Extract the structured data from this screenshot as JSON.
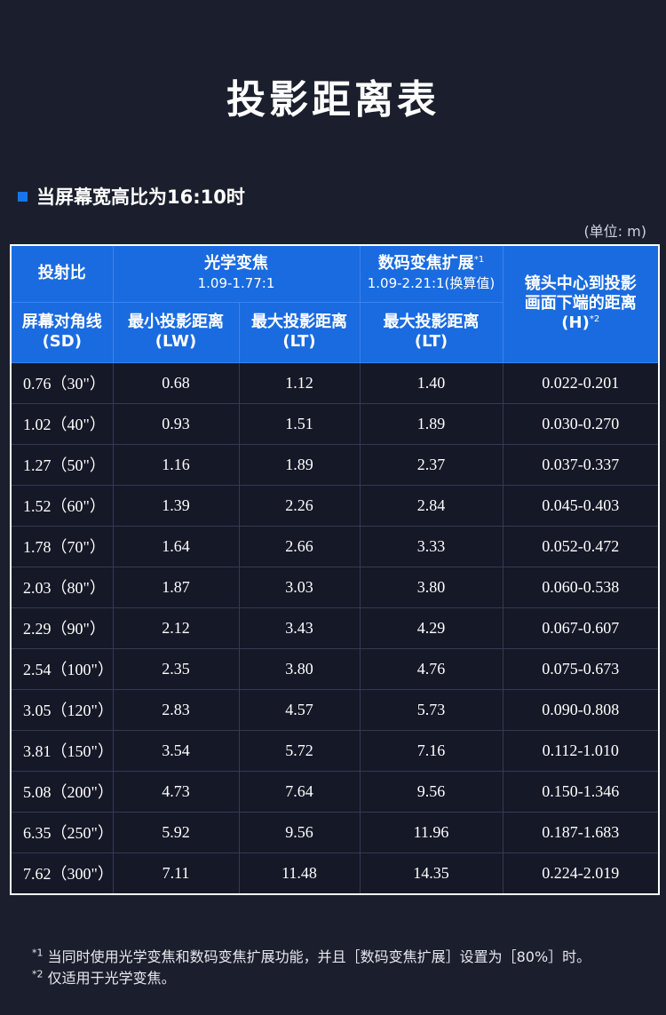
{
  "title": "投影距离表",
  "section": {
    "heading": "当屏幕宽高比为16:10时"
  },
  "unit": "(单位: m)",
  "table": {
    "header": {
      "throw_ratio": "投射比",
      "optical_zoom": "光学变焦",
      "optical_zoom_range": "1.09-1.77:1",
      "digital_zoom": "数码变焦扩展",
      "digital_zoom_sup": "*1",
      "digital_zoom_range": "1.09-2.21:1(换算值)",
      "lens_height_line1": "镜头中心到投影",
      "lens_height_line2": "画面下端的距离",
      "lens_height_line3": "(H)",
      "lens_height_sup": "*2",
      "screen_diag_line1": "屏幕对角线",
      "screen_diag_line2": "(SD)",
      "min_dist_line1": "最小投影距离",
      "min_dist_line2": "(LW)",
      "max_dist_line1": "最大投影距离",
      "max_dist_line2": "(LT)",
      "max_dist_digital_line1": "最大投影距离",
      "max_dist_digital_line2": "(LT)"
    },
    "rows": [
      {
        "sd": "0.76（30\"）",
        "lw": "0.68",
        "lt": "1.12",
        "lt_digital": "1.40",
        "h": "0.022-0.201"
      },
      {
        "sd": "1.02（40\"）",
        "lw": "0.93",
        "lt": "1.51",
        "lt_digital": "1.89",
        "h": "0.030-0.270"
      },
      {
        "sd": "1.27（50\"）",
        "lw": "1.16",
        "lt": "1.89",
        "lt_digital": "2.37",
        "h": "0.037-0.337"
      },
      {
        "sd": "1.52（60\"）",
        "lw": "1.39",
        "lt": "2.26",
        "lt_digital": "2.84",
        "h": "0.045-0.403"
      },
      {
        "sd": "1.78（70\"）",
        "lw": "1.64",
        "lt": "2.66",
        "lt_digital": "3.33",
        "h": "0.052-0.472"
      },
      {
        "sd": "2.03（80\"）",
        "lw": "1.87",
        "lt": "3.03",
        "lt_digital": "3.80",
        "h": "0.060-0.538"
      },
      {
        "sd": "2.29（90\"）",
        "lw": "2.12",
        "lt": "3.43",
        "lt_digital": "4.29",
        "h": "0.067-0.607"
      },
      {
        "sd": "2.54（100\"）",
        "lw": "2.35",
        "lt": "3.80",
        "lt_digital": "4.76",
        "h": "0.075-0.673"
      },
      {
        "sd": "3.05（120\"）",
        "lw": "2.83",
        "lt": "4.57",
        "lt_digital": "5.73",
        "h": "0.090-0.808"
      },
      {
        "sd": "3.81（150\"）",
        "lw": "3.54",
        "lt": "5.72",
        "lt_digital": "7.16",
        "h": "0.112-1.010"
      },
      {
        "sd": "5.08（200\"）",
        "lw": "4.73",
        "lt": "7.64",
        "lt_digital": "9.56",
        "h": "0.150-1.346"
      },
      {
        "sd": "6.35（250\"）",
        "lw": "5.92",
        "lt": "9.56",
        "lt_digital": "11.96",
        "h": "0.187-1.683"
      },
      {
        "sd": "7.62（300\"）",
        "lw": "7.11",
        "lt": "11.48",
        "lt_digital": "14.35",
        "h": "0.224-2.019"
      }
    ]
  },
  "notes": {
    "note1_mark": "*1",
    "note1_text": " 当同时使用光学变焦和数码变焦扩展功能，并且［数码变焦扩展］设置为［80%］时。",
    "note2_mark": "*2",
    "note2_text": " 仅适用于光学变焦。"
  },
  "colors": {
    "background": "#1b1f2d",
    "header": "#1a6bdf",
    "bullet": "#1a73e8"
  }
}
